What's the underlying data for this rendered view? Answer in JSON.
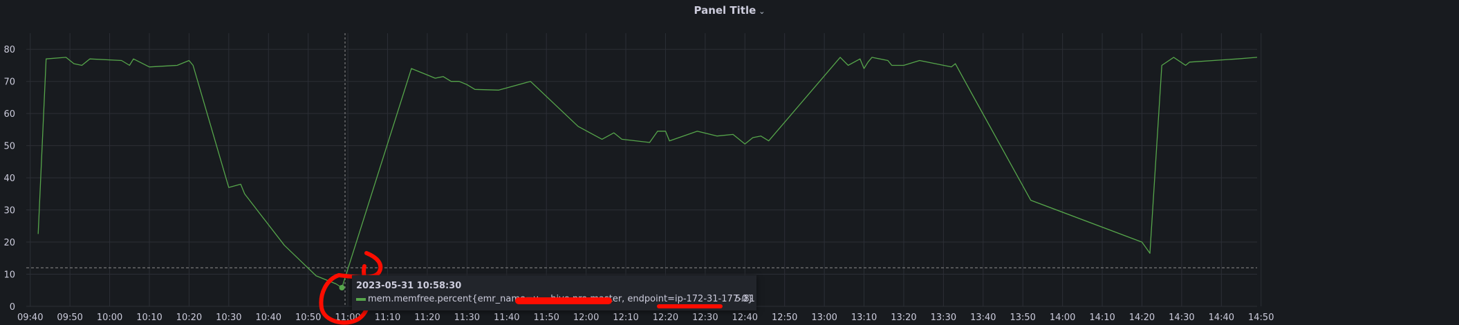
{
  "panel": {
    "title": "Panel Title",
    "title_icon": "chevron-down-icon"
  },
  "colors": {
    "background": "#181b1f",
    "grid": "#2c2f36",
    "series": "#56a64b",
    "annotation": "#ff0d00",
    "text": "#ccccdc"
  },
  "tooltip": {
    "time": "2023-05-31 10:58:30",
    "series_label": "mem.memfree.percent{emr_name=u… hive pro master, endpoint=ip-172-31-177-0}",
    "value": "5.81"
  },
  "chart_data": {
    "type": "line",
    "title": "Panel Title",
    "xlabel": "",
    "ylabel": "",
    "ylim": [
      0,
      85
    ],
    "yticks": [
      0,
      10,
      20,
      30,
      40,
      50,
      60,
      70,
      80
    ],
    "xlim": [
      "09:39",
      "14:49"
    ],
    "xticks": [
      "09:40",
      "09:50",
      "10:00",
      "10:10",
      "10:20",
      "10:30",
      "10:40",
      "10:50",
      "11:00",
      "11:10",
      "11:20",
      "11:30",
      "11:40",
      "11:50",
      "12:00",
      "12:10",
      "12:20",
      "12:30",
      "12:40",
      "12:50",
      "13:00",
      "13:10",
      "13:20",
      "13:30",
      "13:40",
      "13:50",
      "14:00",
      "14:10",
      "14:20",
      "14:30",
      "14:40",
      "14:50"
    ],
    "threshold": 12,
    "grid": true,
    "series": [
      {
        "name": "mem.memfree.percent",
        "x": [
          "09:42",
          "09:44",
          "09:49",
          "09:51",
          "09:53",
          "09:55",
          "10:03",
          "10:05",
          "10:06",
          "10:10",
          "10:17",
          "10:20",
          "10:21",
          "10:30",
          "10:33",
          "10:34",
          "10:44",
          "10:52",
          "10:57",
          "10:58:30",
          "11:16",
          "11:20",
          "11:22",
          "11:24",
          "11:26",
          "11:28",
          "11:30",
          "11:32",
          "11:38",
          "11:46",
          "11:58",
          "12:04",
          "12:07",
          "12:09",
          "12:16",
          "12:18",
          "12:20",
          "12:21",
          "12:28",
          "12:33",
          "12:37",
          "12:40",
          "12:42",
          "12:44",
          "12:46",
          "13:04",
          "13:06",
          "13:09",
          "13:10",
          "13:11",
          "13:12",
          "13:16",
          "13:17",
          "13:20",
          "13:24",
          "13:32",
          "13:33",
          "13:37",
          "13:52",
          "14:20",
          "14:22",
          "14:25",
          "14:28",
          "14:31",
          "14:32",
          "14:44",
          "14:49"
        ],
        "y": [
          22.5,
          77,
          77.5,
          75.5,
          75,
          77,
          76.5,
          75,
          77,
          74.5,
          75,
          76.5,
          75,
          37,
          38,
          35,
          19,
          9.5,
          7,
          5.81,
          74,
          72,
          71,
          71.5,
          70,
          70,
          69,
          67.5,
          67.3,
          70,
          56,
          52,
          54,
          52,
          51,
          54.5,
          54.5,
          51.5,
          54.5,
          53,
          53.5,
          50.5,
          52.5,
          53,
          51.5,
          77.5,
          75,
          77,
          74,
          76,
          77.5,
          76.5,
          75,
          75,
          76.5,
          74.5,
          75.5,
          66.5,
          33,
          20,
          16.5,
          75,
          77.5,
          75,
          76,
          77,
          77.5
        ]
      }
    ]
  }
}
